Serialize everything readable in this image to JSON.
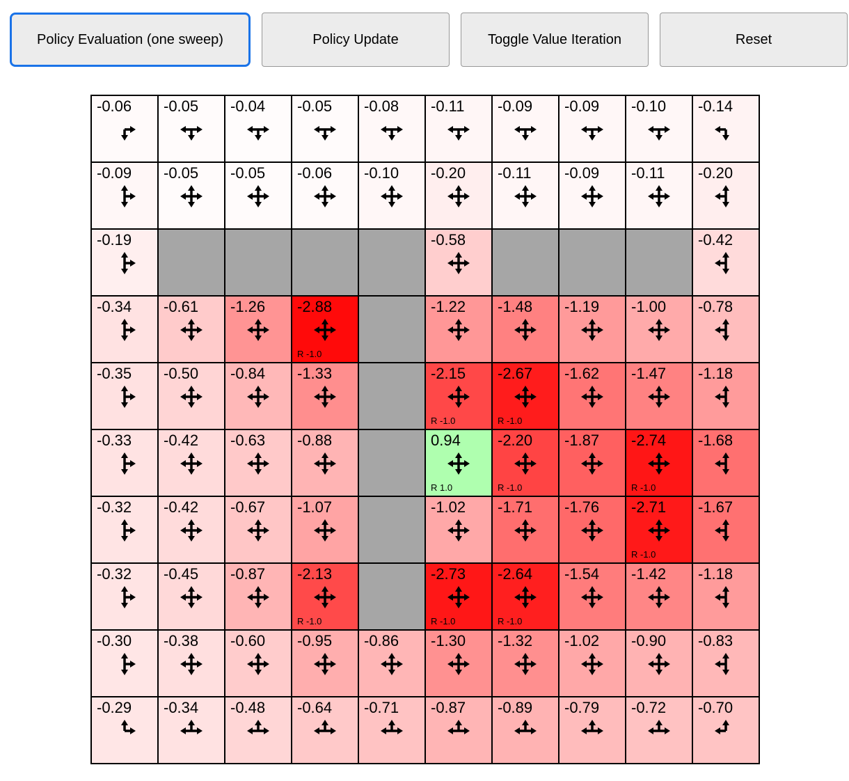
{
  "toolbar": {
    "buttons": [
      {
        "label": "Policy Evaluation (one sweep)",
        "active": true
      },
      {
        "label": "Policy Update",
        "active": false
      },
      {
        "label": "Toggle Value Iteration",
        "active": false
      },
      {
        "label": "Reset",
        "active": false
      }
    ]
  },
  "colors": {
    "accent_border": "#1a73e8",
    "button_bg": "#ececec",
    "button_border": "#979797",
    "wall": "#a6a6a6",
    "negative_base": "#ff0000",
    "positive_base": "#00ff00",
    "cell_border": "#000000",
    "text": "#000000",
    "shade_per_unit": 85
  },
  "grid": {
    "rows": 10,
    "cols": 10,
    "cells": [
      [
        {
          "value": "-0.06",
          "arrows": "dr"
        },
        {
          "value": "-0.05",
          "arrows": "ldr"
        },
        {
          "value": "-0.04",
          "arrows": "ldr"
        },
        {
          "value": "-0.05",
          "arrows": "ldr"
        },
        {
          "value": "-0.08",
          "arrows": "ldr"
        },
        {
          "value": "-0.11",
          "arrows": "ldr"
        },
        {
          "value": "-0.09",
          "arrows": "ldr"
        },
        {
          "value": "-0.09",
          "arrows": "ldr"
        },
        {
          "value": "-0.10",
          "arrows": "ldr"
        },
        {
          "value": "-0.14",
          "arrows": "ld"
        }
      ],
      [
        {
          "value": "-0.09",
          "arrows": "udr"
        },
        {
          "value": "-0.05",
          "arrows": "udlr"
        },
        {
          "value": "-0.05",
          "arrows": "udlr"
        },
        {
          "value": "-0.06",
          "arrows": "udlr"
        },
        {
          "value": "-0.10",
          "arrows": "udlr"
        },
        {
          "value": "-0.20",
          "arrows": "udlr"
        },
        {
          "value": "-0.11",
          "arrows": "udlr"
        },
        {
          "value": "-0.09",
          "arrows": "udlr"
        },
        {
          "value": "-0.11",
          "arrows": "udlr"
        },
        {
          "value": "-0.20",
          "arrows": "udl"
        }
      ],
      [
        {
          "value": "-0.19",
          "arrows": "udr"
        },
        {
          "type": "wall"
        },
        {
          "type": "wall"
        },
        {
          "type": "wall"
        },
        {
          "type": "wall"
        },
        {
          "value": "-0.58",
          "arrows": "udlr"
        },
        {
          "type": "wall"
        },
        {
          "type": "wall"
        },
        {
          "type": "wall"
        },
        {
          "value": "-0.42",
          "arrows": "udl"
        }
      ],
      [
        {
          "value": "-0.34",
          "arrows": "udr"
        },
        {
          "value": "-0.61",
          "arrows": "udlr"
        },
        {
          "value": "-1.26",
          "arrows": "udlr"
        },
        {
          "value": "-2.88",
          "arrows": "udlr",
          "reward": "R -1.0"
        },
        {
          "type": "wall"
        },
        {
          "value": "-1.22",
          "arrows": "udlr"
        },
        {
          "value": "-1.48",
          "arrows": "udlr"
        },
        {
          "value": "-1.19",
          "arrows": "udlr"
        },
        {
          "value": "-1.00",
          "arrows": "udlr"
        },
        {
          "value": "-0.78",
          "arrows": "udl"
        }
      ],
      [
        {
          "value": "-0.35",
          "arrows": "udr"
        },
        {
          "value": "-0.50",
          "arrows": "udlr"
        },
        {
          "value": "-0.84",
          "arrows": "udlr"
        },
        {
          "value": "-1.33",
          "arrows": "udlr"
        },
        {
          "type": "wall"
        },
        {
          "value": "-2.15",
          "arrows": "udlr",
          "reward": "R -1.0"
        },
        {
          "value": "-2.67",
          "arrows": "udlr",
          "reward": "R -1.0"
        },
        {
          "value": "-1.62",
          "arrows": "udlr"
        },
        {
          "value": "-1.47",
          "arrows": "udlr"
        },
        {
          "value": "-1.18",
          "arrows": "udl"
        }
      ],
      [
        {
          "value": "-0.33",
          "arrows": "udr"
        },
        {
          "value": "-0.42",
          "arrows": "udlr"
        },
        {
          "value": "-0.63",
          "arrows": "udlr"
        },
        {
          "value": "-0.88",
          "arrows": "udlr"
        },
        {
          "type": "wall"
        },
        {
          "value": "0.94",
          "arrows": "udlr",
          "reward": "R 1.0"
        },
        {
          "value": "-2.20",
          "arrows": "udlr",
          "reward": "R -1.0"
        },
        {
          "value": "-1.87",
          "arrows": "udlr"
        },
        {
          "value": "-2.74",
          "arrows": "udlr",
          "reward": "R -1.0"
        },
        {
          "value": "-1.68",
          "arrows": "udl"
        }
      ],
      [
        {
          "value": "-0.32",
          "arrows": "udr"
        },
        {
          "value": "-0.42",
          "arrows": "udlr"
        },
        {
          "value": "-0.67",
          "arrows": "udlr"
        },
        {
          "value": "-1.07",
          "arrows": "udlr"
        },
        {
          "type": "wall"
        },
        {
          "value": "-1.02",
          "arrows": "udlr"
        },
        {
          "value": "-1.71",
          "arrows": "udlr"
        },
        {
          "value": "-1.76",
          "arrows": "udlr"
        },
        {
          "value": "-2.71",
          "arrows": "udlr",
          "reward": "R -1.0"
        },
        {
          "value": "-1.67",
          "arrows": "udl"
        }
      ],
      [
        {
          "value": "-0.32",
          "arrows": "udr"
        },
        {
          "value": "-0.45",
          "arrows": "udlr"
        },
        {
          "value": "-0.87",
          "arrows": "udlr"
        },
        {
          "value": "-2.13",
          "arrows": "udlr",
          "reward": "R -1.0"
        },
        {
          "type": "wall"
        },
        {
          "value": "-2.73",
          "arrows": "udlr",
          "reward": "R -1.0"
        },
        {
          "value": "-2.64",
          "arrows": "udlr",
          "reward": "R -1.0"
        },
        {
          "value": "-1.54",
          "arrows": "udlr"
        },
        {
          "value": "-1.42",
          "arrows": "udlr"
        },
        {
          "value": "-1.18",
          "arrows": "udl"
        }
      ],
      [
        {
          "value": "-0.30",
          "arrows": "udr"
        },
        {
          "value": "-0.38",
          "arrows": "udlr"
        },
        {
          "value": "-0.60",
          "arrows": "udlr"
        },
        {
          "value": "-0.95",
          "arrows": "udlr"
        },
        {
          "value": "-0.86",
          "arrows": "udlr"
        },
        {
          "value": "-1.30",
          "arrows": "udlr"
        },
        {
          "value": "-1.32",
          "arrows": "udlr"
        },
        {
          "value": "-1.02",
          "arrows": "udlr"
        },
        {
          "value": "-0.90",
          "arrows": "udlr"
        },
        {
          "value": "-0.83",
          "arrows": "udl"
        }
      ],
      [
        {
          "value": "-0.29",
          "arrows": "ur"
        },
        {
          "value": "-0.34",
          "arrows": "ulr"
        },
        {
          "value": "-0.48",
          "arrows": "ulr"
        },
        {
          "value": "-0.64",
          "arrows": "ulr"
        },
        {
          "value": "-0.71",
          "arrows": "ulr"
        },
        {
          "value": "-0.87",
          "arrows": "ulr"
        },
        {
          "value": "-0.89",
          "arrows": "ulr"
        },
        {
          "value": "-0.79",
          "arrows": "ulr"
        },
        {
          "value": "-0.72",
          "arrows": "ulr"
        },
        {
          "value": "-0.70",
          "arrows": "ul"
        }
      ]
    ]
  }
}
